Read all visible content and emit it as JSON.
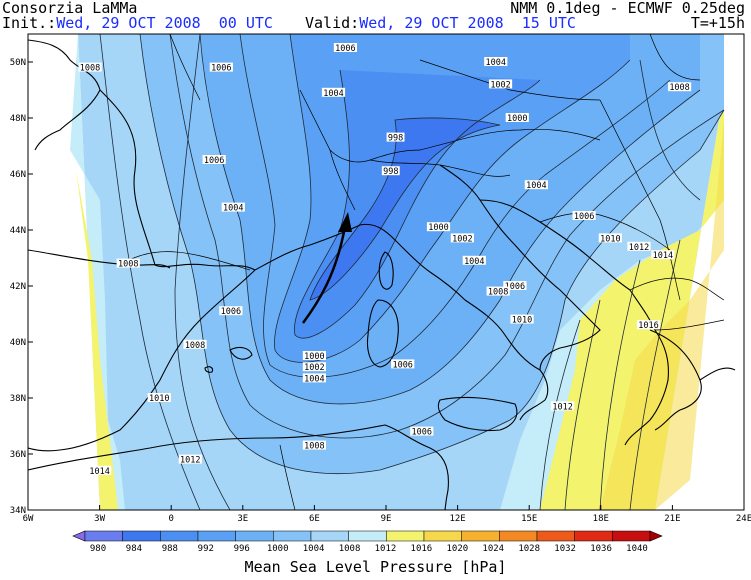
{
  "header": {
    "source": "Consorzia LaMMa",
    "model": "NMM 0.1deg - ECMWF 0.25deg",
    "init_label": "Init.:",
    "init_value": "Wed, 29 OCT 2008  00 UTC",
    "valid_label": "Valid:",
    "valid_value": "Wed, 29 OCT 2008  15 UTC",
    "lead_time": "T=+15h"
  },
  "map": {
    "lat_ticks": [
      "50N",
      "48N",
      "46N",
      "44N",
      "42N",
      "40N",
      "38N",
      "36N",
      "34N"
    ],
    "lon_ticks": [
      "6W",
      "3W",
      "0",
      "3E",
      "6E",
      "9E",
      "12E",
      "15E",
      "18E",
      "21E",
      "24E"
    ],
    "lat_values": [
      50,
      48,
      46,
      44,
      42,
      40,
      38,
      36,
      34
    ],
    "lon_values": [
      -6,
      -3,
      0,
      3,
      6,
      9,
      12,
      15,
      18,
      21,
      24
    ],
    "isobar_labels": [
      {
        "text": "1006",
        "lon": 7.3,
        "lat": 50.5
      },
      {
        "text": "1008",
        "lon": -3.4,
        "lat": 49.8
      },
      {
        "text": "1006",
        "lon": 2.1,
        "lat": 49.8
      },
      {
        "text": "1004",
        "lon": 13.6,
        "lat": 50.0
      },
      {
        "text": "1002",
        "lon": 13.8,
        "lat": 49.2
      },
      {
        "text": "1004",
        "lon": 6.8,
        "lat": 48.9
      },
      {
        "text": "1000",
        "lon": 14.5,
        "lat": 48.0
      },
      {
        "text": "998",
        "lon": 9.4,
        "lat": 47.3
      },
      {
        "text": "1008",
        "lon": 21.3,
        "lat": 49.1
      },
      {
        "text": "1006",
        "lon": 1.8,
        "lat": 46.5
      },
      {
        "text": "998",
        "lon": 9.2,
        "lat": 46.1
      },
      {
        "text": "1004",
        "lon": 15.3,
        "lat": 45.6
      },
      {
        "text": "1004",
        "lon": 2.6,
        "lat": 44.8
      },
      {
        "text": "1000",
        "lon": 11.2,
        "lat": 44.1
      },
      {
        "text": "1002",
        "lon": 12.2,
        "lat": 43.7
      },
      {
        "text": "1006",
        "lon": 17.3,
        "lat": 44.5
      },
      {
        "text": "1010",
        "lon": 18.4,
        "lat": 43.7
      },
      {
        "text": "1012",
        "lon": 19.6,
        "lat": 43.4
      },
      {
        "text": "1014",
        "lon": 20.6,
        "lat": 43.1
      },
      {
        "text": "1004",
        "lon": 12.7,
        "lat": 42.9
      },
      {
        "text": "1006",
        "lon": 14.4,
        "lat": 42.0
      },
      {
        "text": "1008",
        "lon": 13.7,
        "lat": 41.8
      },
      {
        "text": "1008",
        "lon": -1.8,
        "lat": 42.8
      },
      {
        "text": "1006",
        "lon": 2.5,
        "lat": 41.1
      },
      {
        "text": "1010",
        "lon": 14.7,
        "lat": 40.8
      },
      {
        "text": "1016",
        "lon": 20.0,
        "lat": 40.6
      },
      {
        "text": "1008",
        "lon": 1.0,
        "lat": 39.9
      },
      {
        "text": "1000",
        "lon": 6.0,
        "lat": 39.5
      },
      {
        "text": "1002",
        "lon": 6.0,
        "lat": 39.1
      },
      {
        "text": "1004",
        "lon": 6.0,
        "lat": 38.7
      },
      {
        "text": "1006",
        "lon": 9.7,
        "lat": 39.2
      },
      {
        "text": "1010",
        "lon": -0.5,
        "lat": 38.0
      },
      {
        "text": "1012",
        "lon": 16.4,
        "lat": 37.7
      },
      {
        "text": "1006",
        "lon": 10.5,
        "lat": 36.8
      },
      {
        "text": "1008",
        "lon": 6.0,
        "lat": 36.3
      },
      {
        "text": "1012",
        "lon": 0.8,
        "lat": 35.8
      },
      {
        "text": "1014",
        "lon": -3.0,
        "lat": 35.4
      }
    ]
  },
  "legend": {
    "levels": [
      "980",
      "984",
      "988",
      "992",
      "996",
      "1000",
      "1004",
      "1008",
      "1012",
      "1016",
      "1020",
      "1024",
      "1028",
      "1032",
      "1036",
      "1040"
    ],
    "colors": [
      "#8a6be6",
      "#6a7df0",
      "#3e78f0",
      "#4b8ff2",
      "#5aa0f4",
      "#6cb1f6",
      "#85c2f7",
      "#a5d6f8",
      "#c5ecf9",
      "#f3f36e",
      "#f6d84a",
      "#f6b22f",
      "#f48822",
      "#ee5a1a",
      "#e02a14",
      "#c80f0f",
      "#a80000"
    ],
    "title": "Mean Sea Level Pressure [hPa]"
  }
}
